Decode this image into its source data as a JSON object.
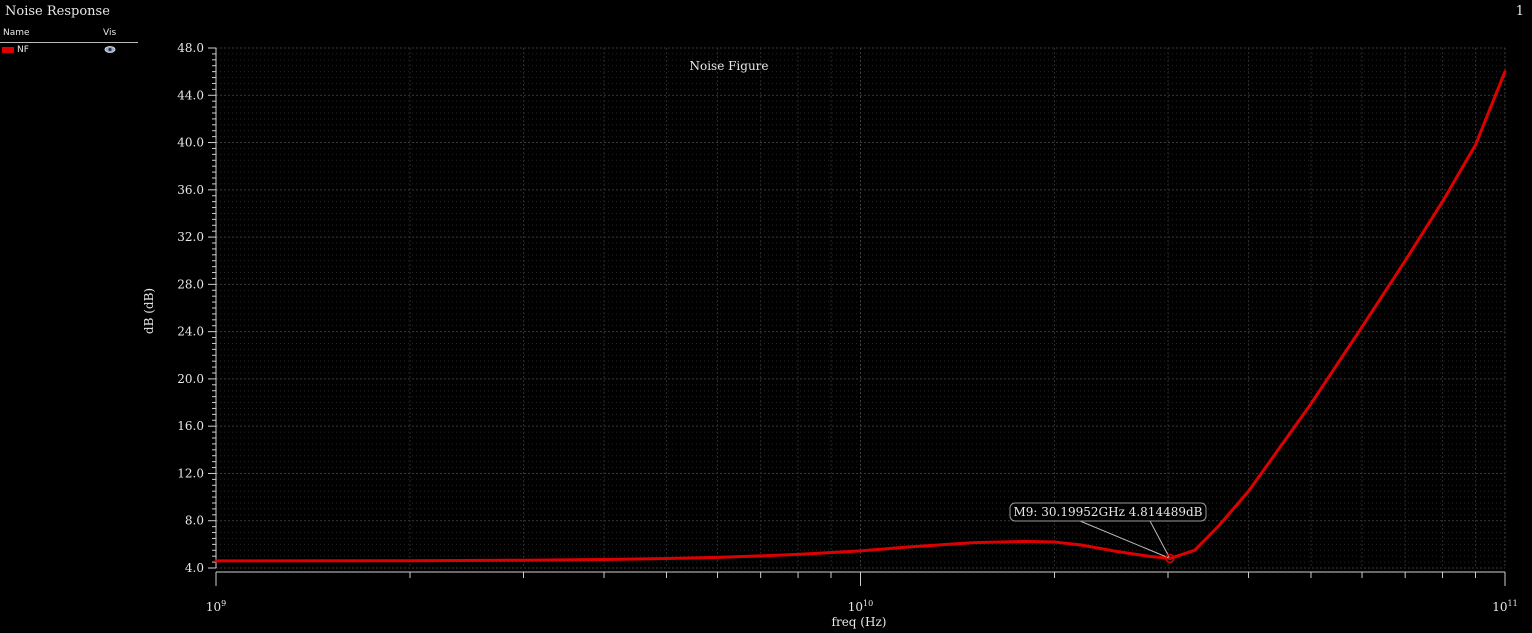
{
  "window": {
    "title": "Noise Response",
    "index": "1"
  },
  "legend": {
    "col_name": "Name",
    "col_vis": "Vis",
    "items": [
      {
        "name": "NF",
        "color": "#dd0000",
        "visible": true
      }
    ]
  },
  "chart_data": {
    "type": "line",
    "title": "Noise Figure",
    "xlabel": "freq (Hz)",
    "ylabel": "dB (dB)",
    "x_scale": "log",
    "xlim": [
      1000000000.0,
      100000000000.0
    ],
    "ylim": [
      4.0,
      48.0
    ],
    "x_major_ticks": [
      {
        "value": 1000000000.0,
        "base": "10",
        "exp": "9"
      },
      {
        "value": 10000000000.0,
        "base": "10",
        "exp": "10"
      },
      {
        "value": 100000000000.0,
        "base": "10",
        "exp": "11"
      }
    ],
    "y_ticks": [
      "4.0",
      "8.0",
      "12.0",
      "16.0",
      "20.0",
      "24.0",
      "28.0",
      "32.0",
      "36.0",
      "40.0",
      "44.0",
      "48.0"
    ],
    "grid": true,
    "series": [
      {
        "name": "NF",
        "color": "#dd0000",
        "x": [
          1000000000.0,
          2000000000.0,
          3000000000.0,
          4000000000.0,
          5000000000.0,
          6000000000.0,
          7000000000.0,
          8000000000.0,
          10000000000.0,
          12000000000.0,
          15000000000.0,
          18000000000.0,
          20000000000.0,
          22000000000.0,
          25000000000.0,
          28000000000.0,
          30200000000.0,
          33000000000.0,
          36000000000.0,
          40000000000.0,
          45000000000.0,
          50000000000.0,
          60000000000.0,
          70000000000.0,
          80000000000.0,
          90000000000.0,
          100000000000.0
        ],
        "y": [
          4.6,
          4.62,
          4.66,
          4.72,
          4.8,
          4.9,
          5.02,
          5.15,
          5.45,
          5.8,
          6.15,
          6.25,
          6.2,
          5.95,
          5.4,
          5.0,
          4.81,
          5.5,
          7.6,
          10.5,
          14.4,
          17.9,
          24.4,
          30.0,
          35.0,
          39.8,
          46.0
        ]
      }
    ],
    "marker": {
      "label": "M9: 30.19952GHz 4.814489dB",
      "x": 30199520000.0,
      "y": 4.814489
    }
  }
}
